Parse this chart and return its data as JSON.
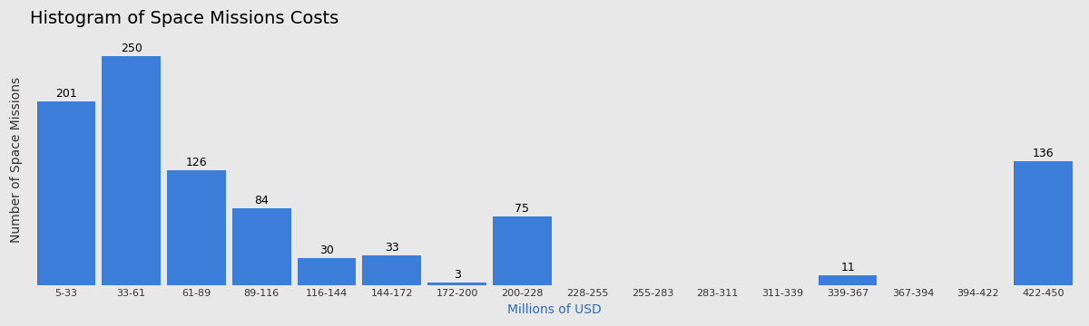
{
  "title": "Histogram of Space Missions Costs",
  "xlabel": "Millions of USD",
  "ylabel": "Number of Space Missions",
  "categories": [
    "5-33",
    "33-61",
    "61-89",
    "89-116",
    "116-144",
    "144-172",
    "172-200",
    "200-228",
    "228-255",
    "255-283",
    "283-311",
    "311-339",
    "339-367",
    "367-394",
    "394-422",
    "422-450"
  ],
  "values": [
    201,
    250,
    126,
    84,
    30,
    33,
    3,
    75,
    0,
    0,
    0,
    0,
    11,
    0,
    0,
    136
  ],
  "bar_color": "#3B7DD8",
  "background_color": "#E8E8E8",
  "title_fontsize": 14,
  "label_fontsize": 10,
  "xlabel_color": "#2B6CB0",
  "ylabel_color": "#333333",
  "annotation_fontsize": 9,
  "ylim": [
    0,
    275
  ]
}
